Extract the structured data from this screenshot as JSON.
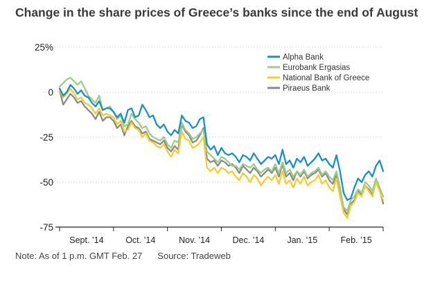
{
  "title": "Change in the share prices of Greece’s banks since the end of August",
  "note": "Note: As of 1 p.m. GMT Feb. 27",
  "source": "Source: Tradeweb",
  "chart_data": {
    "type": "line",
    "title": "Change in the share prices of Greece’s banks since the end of August",
    "xlabel": "",
    "ylabel": "",
    "ylim": [
      -75,
      25
    ],
    "y_ticks": [
      25,
      0,
      -25,
      -50,
      -75
    ],
    "y_tick_labels": [
      "25%",
      "0",
      "-25",
      "-50",
      "-75"
    ],
    "x_months": [
      "Sept. ’14",
      "Oct. ’14",
      "Nov. ’14",
      "Dec. ’14",
      "Jan. ’15",
      "Feb. ’15"
    ],
    "x": [
      0,
      2,
      4,
      6,
      8,
      10,
      12,
      14,
      16,
      18,
      20,
      22,
      24,
      26,
      28,
      30,
      32,
      34,
      36,
      38,
      40,
      42,
      44,
      46,
      48,
      50,
      52,
      54,
      56,
      58,
      60,
      62,
      64,
      66,
      68,
      70,
      72,
      74,
      76,
      78,
      80,
      82,
      84,
      86,
      88,
      90,
      92,
      94,
      96,
      98,
      100,
      102,
      104,
      106,
      108,
      110,
      112,
      114,
      116,
      118,
      120,
      122,
      124,
      126,
      128,
      130,
      132,
      134,
      136,
      138,
      140,
      142,
      144,
      146,
      148,
      150,
      152,
      154,
      156,
      158,
      160,
      162,
      164,
      166,
      168,
      170,
      172,
      174,
      176,
      178,
      180
    ],
    "series": [
      {
        "name": "Alpha Bank",
        "color": "#1a8ec8",
        "values": [
          2,
          -2,
          0,
          4,
          2,
          -1,
          1,
          -2,
          -3,
          -6,
          -8,
          -5,
          -10,
          -9,
          -9,
          -11,
          -14,
          -12,
          -17,
          -10,
          -9,
          -14,
          -13,
          -7,
          -10,
          -14,
          -13,
          -18,
          -20,
          -18,
          -22,
          -24,
          -21,
          -23,
          -13,
          -16,
          -17,
          -20,
          -19,
          -15,
          -14,
          -29,
          -32,
          -30,
          -35,
          -31,
          -34,
          -35,
          -34,
          -36,
          -39,
          -35,
          -36,
          -38,
          -34,
          -37,
          -40,
          -38,
          -36,
          -37,
          -35,
          -40,
          -32,
          -40,
          -38,
          -42,
          -37,
          -39,
          -36,
          -41,
          -39,
          -37,
          -34,
          -38,
          -37,
          -40,
          -42,
          -35,
          -44,
          -56,
          -60,
          -59,
          -53,
          -48,
          -50,
          -46,
          -44,
          -47,
          -41,
          -38,
          -44
        ]
      },
      {
        "name": "Eurobank Ergasias",
        "color": "#9ccc8a",
        "values": [
          3,
          5,
          7,
          8,
          6,
          4,
          6,
          2,
          -2,
          -4,
          -6,
          -2,
          -10,
          -9,
          -8,
          -11,
          -15,
          -13,
          -19,
          -18,
          -12,
          -15,
          -17,
          -20,
          -19,
          -23,
          -25,
          -26,
          -27,
          -25,
          -29,
          -31,
          -27,
          -28,
          -17,
          -21,
          -23,
          -26,
          -25,
          -23,
          -21,
          -33,
          -35,
          -37,
          -39,
          -36,
          -37,
          -39,
          -41,
          -41,
          -43,
          -40,
          -41,
          -42,
          -40,
          -43,
          -45,
          -43,
          -42,
          -44,
          -40,
          -45,
          -39,
          -45,
          -43,
          -47,
          -44,
          -46,
          -43,
          -47,
          -45,
          -44,
          -42,
          -46,
          -44,
          -47,
          -49,
          -44,
          -53,
          -64,
          -66,
          -60,
          -58,
          -54,
          -56,
          -50,
          -52,
          -55,
          -48,
          -53,
          -58
        ]
      },
      {
        "name": "National Bank of Greece",
        "color": "#f5cc30",
        "values": [
          1,
          -3,
          -1,
          2,
          -1,
          -4,
          -3,
          -6,
          -7,
          -9,
          -12,
          -9,
          -13,
          -12,
          -13,
          -14,
          -18,
          -16,
          -22,
          -21,
          -17,
          -20,
          -21,
          -25,
          -23,
          -27,
          -28,
          -30,
          -31,
          -29,
          -33,
          -36,
          -32,
          -34,
          -22,
          -26,
          -27,
          -31,
          -30,
          -28,
          -25,
          -42,
          -44,
          -42,
          -45,
          -42,
          -43,
          -45,
          -44,
          -47,
          -49,
          -45,
          -47,
          -50,
          -46,
          -48,
          -52,
          -49,
          -47,
          -49,
          -46,
          -51,
          -44,
          -51,
          -49,
          -53,
          -48,
          -51,
          -47,
          -52,
          -50,
          -49,
          -46,
          -51,
          -49,
          -53,
          -55,
          -48,
          -58,
          -67,
          -70,
          -63,
          -61,
          -56,
          -58,
          -52,
          -55,
          -58,
          -50,
          -55,
          -60
        ]
      },
      {
        "name": "Piraeus Bank",
        "color": "#8a8a8a",
        "values": [
          1,
          -7,
          -4,
          -1,
          -3,
          -6,
          -5,
          -8,
          -10,
          -12,
          -15,
          -11,
          -16,
          -14,
          -14,
          -16,
          -20,
          -18,
          -24,
          -19,
          -16,
          -19,
          -20,
          -23,
          -22,
          -26,
          -27,
          -28,
          -29,
          -27,
          -31,
          -33,
          -30,
          -32,
          -18,
          -22,
          -24,
          -28,
          -27,
          -24,
          -20,
          -37,
          -39,
          -38,
          -41,
          -38,
          -39,
          -41,
          -40,
          -42,
          -45,
          -41,
          -43,
          -45,
          -42,
          -44,
          -47,
          -45,
          -43,
          -45,
          -42,
          -47,
          -40,
          -47,
          -45,
          -49,
          -44,
          -47,
          -44,
          -48,
          -46,
          -45,
          -43,
          -47,
          -45,
          -49,
          -51,
          -46,
          -55,
          -65,
          -68,
          -62,
          -60,
          -55,
          -57,
          -52,
          -54,
          -57,
          -50,
          -54,
          -62
        ]
      }
    ],
    "legend_position": "top-right"
  }
}
